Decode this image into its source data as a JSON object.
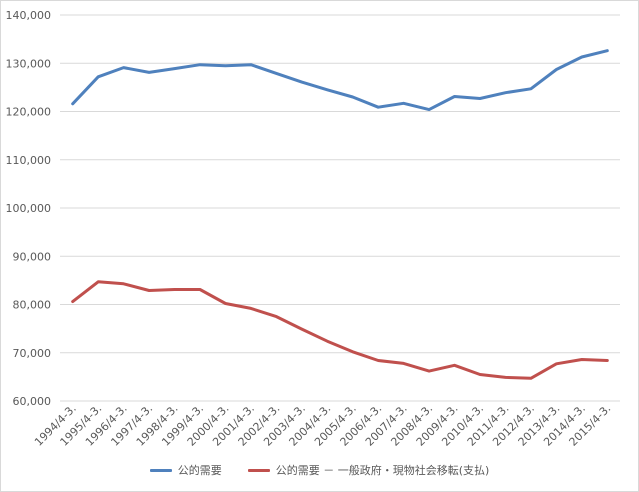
{
  "chart_data": {
    "type": "line",
    "categories": [
      "1994/4-3.",
      "1995/4-3.",
      "1996/4-3.",
      "1997/4-3.",
      "1998/4-3.",
      "1999/4-3.",
      "2000/4-3.",
      "2001/4-3.",
      "2002/4-3.",
      "2003/4-3.",
      "2004/4-3.",
      "2005/4-3.",
      "2006/4-3.",
      "2007/4-3.",
      "2008/4-3.",
      "2009/4-3.",
      "2010/4-3.",
      "2011/4-3.",
      "2012/4-3.",
      "2013/4-3.",
      "2014/4-3.",
      "2015/4-3."
    ],
    "series": [
      {
        "name": "公的需要",
        "color": "#4f81bd",
        "values": [
          121600,
          127200,
          129100,
          128100,
          128900,
          129700,
          129500,
          129700,
          127900,
          126100,
          124500,
          123000,
          120900,
          121700,
          120400,
          123100,
          122700,
          123900,
          124700,
          128700,
          131300,
          132600
        ]
      },
      {
        "name": "公的需要 － 一般政府・現物社会移転(支払)",
        "color": "#c0504d",
        "values": [
          80600,
          84700,
          84300,
          82900,
          83100,
          83100,
          80200,
          79200,
          77500,
          74900,
          72400,
          70200,
          68400,
          67800,
          66200,
          67400,
          65500,
          64900,
          64700,
          67700,
          68600,
          68400
        ]
      }
    ],
    "yticks": [
      "60,000",
      "70,000",
      "80,000",
      "90,000",
      "100,000",
      "110,000",
      "120,000",
      "130,000",
      "140,000"
    ],
    "ylim": [
      60000,
      140000
    ],
    "grid": true,
    "legend": "bottom",
    "title": "",
    "xlabel": "",
    "ylabel": ""
  }
}
